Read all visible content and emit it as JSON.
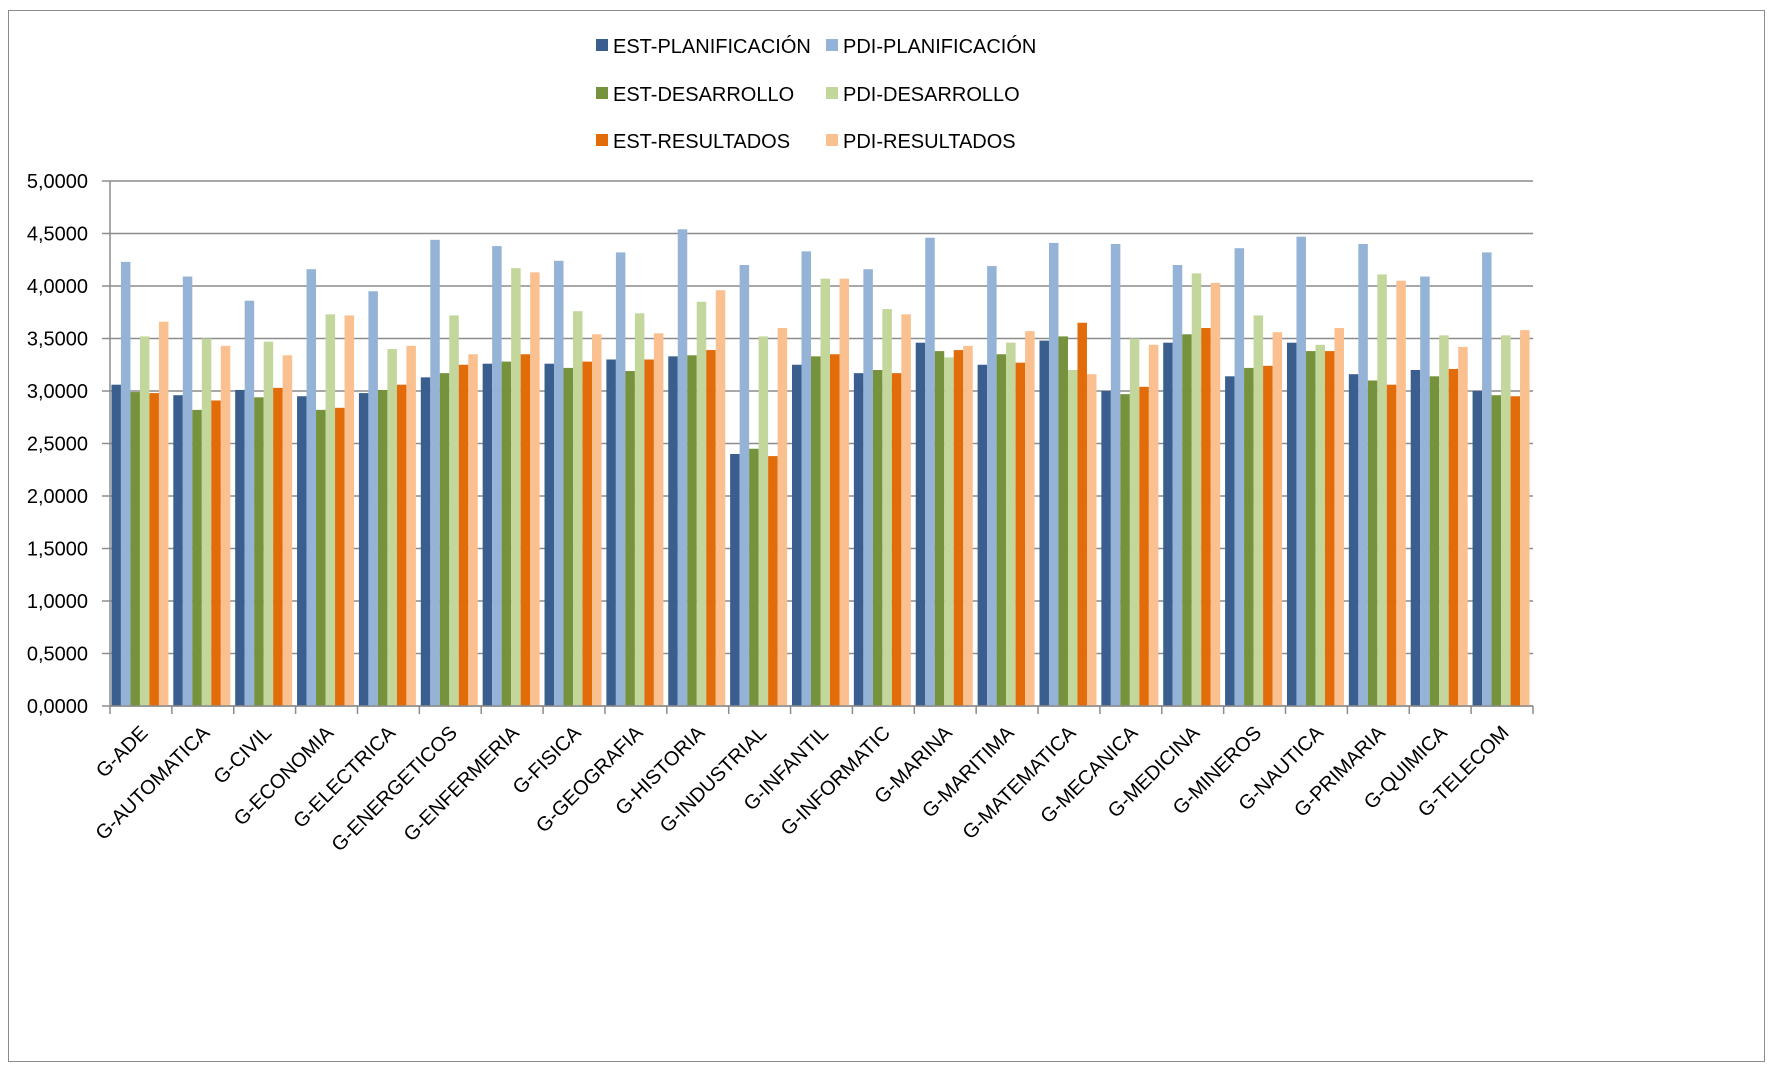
{
  "chart_data": {
    "type": "bar",
    "categories": [
      "G-ADE",
      "G-AUTOMATICA",
      "G-CIVIL",
      "G-ECONOMIA",
      "G-ELECTRICA",
      "G-ENERGETICOS",
      "G-ENFERMERIA",
      "G-FISICA",
      "G-GEOGRAFIA",
      "G-HISTORIA",
      "G-INDUSTRIAL",
      "G-INFANTIL",
      "G-INFORMATIC",
      "G-MARINA",
      "G-MARITIMA",
      "G-MATEMATICA",
      "G-MECANICA",
      "G-MEDICINA",
      "G-MINEROS",
      "G-NAUTICA",
      "G-PRIMARIA",
      "G-QUIMICA",
      "G-TELECOM"
    ],
    "series": [
      {
        "name": "EST-PLANIFICACIÓN",
        "color": "#3a5f8f",
        "values": [
          3.06,
          2.96,
          3.01,
          2.95,
          2.98,
          3.13,
          3.26,
          3.26,
          3.3,
          3.33,
          2.4,
          3.25,
          3.17,
          3.46,
          3.25,
          3.48,
          3.0,
          3.46,
          3.14,
          3.46,
          3.16,
          3.2,
          3.0
        ]
      },
      {
        "name": "PDI-PLANIFICACIÓN",
        "color": "#95b3d7",
        "values": [
          4.23,
          4.09,
          3.86,
          4.16,
          3.95,
          4.44,
          4.38,
          4.24,
          4.32,
          4.54,
          4.2,
          4.33,
          4.16,
          4.46,
          4.19,
          4.41,
          4.4,
          4.2,
          4.36,
          4.47,
          4.4,
          4.09,
          4.32
        ]
      },
      {
        "name": "EST-DESARROLLO",
        "color": "#76923c",
        "values": [
          2.99,
          2.82,
          2.94,
          2.82,
          3.01,
          3.17,
          3.28,
          3.22,
          3.19,
          3.34,
          2.45,
          3.33,
          3.2,
          3.38,
          3.35,
          3.52,
          2.97,
          3.54,
          3.22,
          3.38,
          3.1,
          3.14,
          2.96
        ]
      },
      {
        "name": "PDI-DESARROLLO",
        "color": "#c3d69b",
        "values": [
          3.52,
          3.5,
          3.47,
          3.73,
          3.4,
          3.72,
          4.17,
          3.76,
          3.74,
          3.85,
          3.52,
          4.07,
          3.78,
          3.32,
          3.46,
          3.2,
          3.5,
          4.12,
          3.72,
          3.44,
          4.11,
          3.53,
          3.53
        ]
      },
      {
        "name": "EST-RESULTADOS",
        "color": "#e36c0a",
        "values": [
          2.98,
          2.91,
          3.03,
          2.84,
          3.06,
          3.25,
          3.35,
          3.28,
          3.3,
          3.39,
          2.38,
          3.35,
          3.17,
          3.39,
          3.27,
          3.65,
          3.04,
          3.6,
          3.24,
          3.38,
          3.06,
          3.21,
          2.95
        ]
      },
      {
        "name": "PDI-RESULTADOS",
        "color": "#fac090",
        "values": [
          3.66,
          3.43,
          3.34,
          3.72,
          3.43,
          3.35,
          4.13,
          3.54,
          3.55,
          3.96,
          3.6,
          4.07,
          3.73,
          3.43,
          3.57,
          3.16,
          3.44,
          4.03,
          3.56,
          3.6,
          4.05,
          3.42,
          3.58
        ]
      }
    ],
    "y_ticks": [
      "0,0000",
      "0,5000",
      "1,0000",
      "1,5000",
      "2,0000",
      "2,5000",
      "3,0000",
      "3,5000",
      "4,0000",
      "4,5000",
      "5,0000"
    ],
    "ylim": [
      0,
      5
    ],
    "ystep": 0.5,
    "grid": true,
    "legend_position": "top",
    "legend_order": [
      0,
      1,
      2,
      3,
      4,
      5
    ]
  }
}
